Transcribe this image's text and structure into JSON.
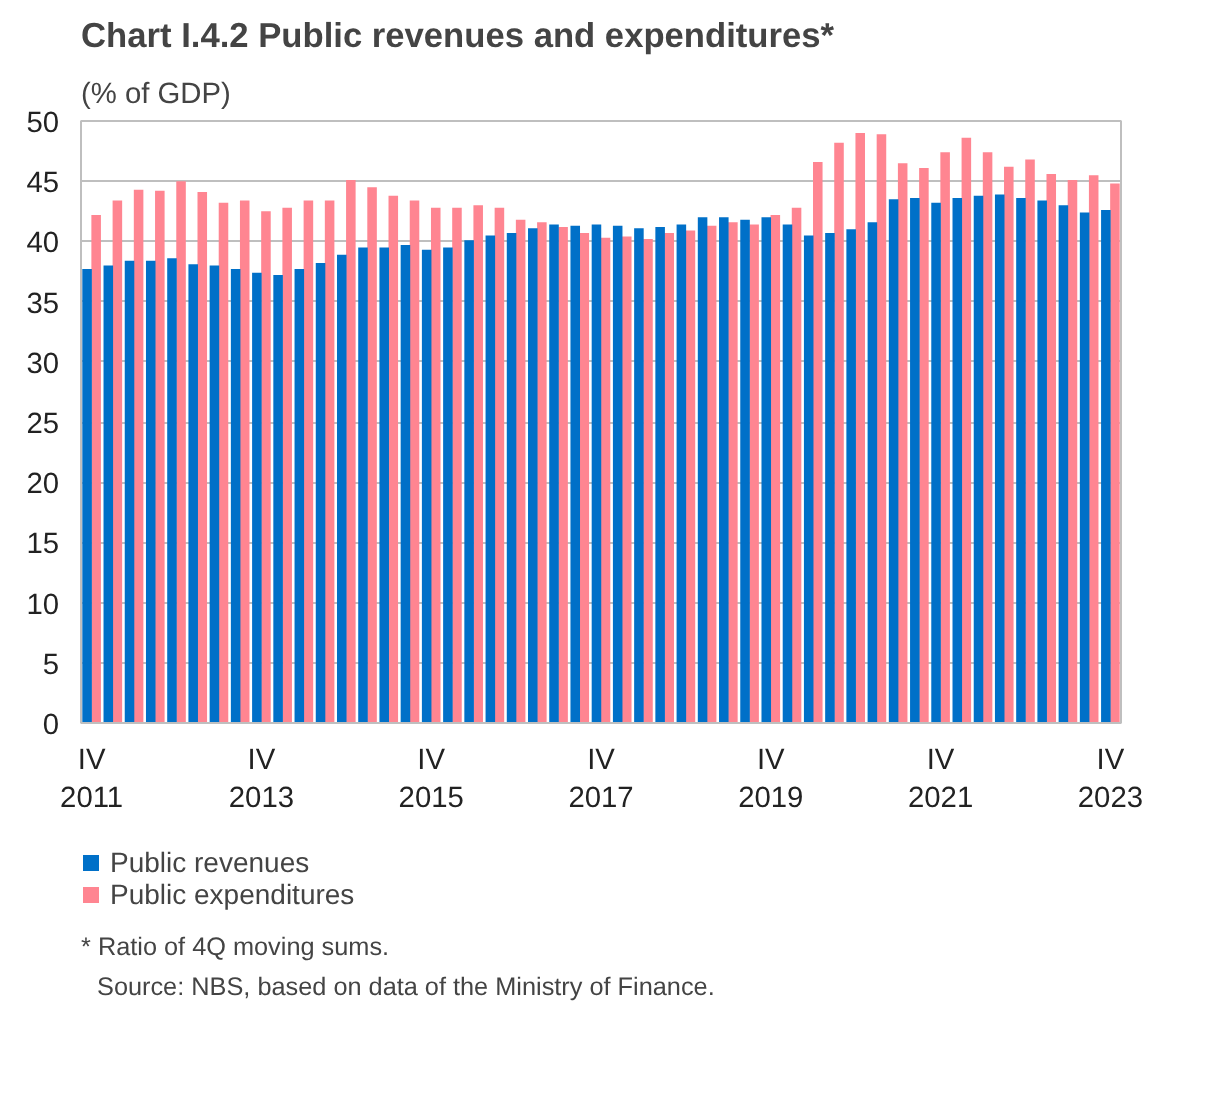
{
  "chart_data": {
    "type": "bar",
    "title": "Chart I.4.2 Public revenues and expenditures*",
    "subtitle": "(% of GDP)",
    "categories": [
      "IV\n2011",
      null,
      null,
      null,
      null,
      null,
      null,
      null,
      "IV\n2013",
      null,
      null,
      null,
      null,
      null,
      null,
      null,
      "IV\n2015",
      null,
      null,
      null,
      null,
      null,
      null,
      null,
      "IV\n2017",
      null,
      null,
      null,
      null,
      null,
      null,
      null,
      "IV\n2019",
      null,
      null,
      null,
      null,
      null,
      null,
      null,
      "IV\n2021",
      null,
      null,
      null,
      null,
      null,
      null,
      null,
      "IV\n2023"
    ],
    "series": [
      {
        "name": "Public revenues",
        "color": "#0070c8",
        "values": [
          37.7,
          38.0,
          38.4,
          38.4,
          38.6,
          38.1,
          38.0,
          37.7,
          37.4,
          37.2,
          37.7,
          38.2,
          38.9,
          39.5,
          39.5,
          39.7,
          39.3,
          39.5,
          40.1,
          40.5,
          40.7,
          41.1,
          41.4,
          41.3,
          41.4,
          41.3,
          41.1,
          41.2,
          41.4,
          42.0,
          42.0,
          41.8,
          42.0,
          41.4,
          40.5,
          40.7,
          41.0,
          41.6,
          43.5,
          43.6,
          43.2,
          43.6,
          43.8,
          43.9,
          43.6,
          43.4,
          43.0,
          42.4,
          42.6
        ]
      },
      {
        "name": "Public expenditures",
        "color": "#ff8591",
        "values": [
          42.2,
          43.4,
          44.3,
          44.2,
          45.0,
          44.1,
          43.2,
          43.4,
          42.5,
          42.8,
          43.4,
          43.4,
          45.1,
          44.5,
          43.8,
          43.4,
          42.8,
          42.8,
          43.0,
          42.8,
          41.8,
          41.6,
          41.2,
          40.7,
          40.3,
          40.4,
          40.2,
          40.7,
          40.9,
          41.3,
          41.6,
          41.4,
          42.2,
          42.8,
          46.6,
          48.2,
          49.0,
          48.9,
          46.5,
          46.1,
          47.4,
          48.6,
          47.4,
          46.2,
          46.8,
          45.6,
          45.1,
          45.5,
          44.8
        ]
      }
    ],
    "ylim": [
      0,
      50
    ],
    "yticks": [
      0,
      5,
      10,
      15,
      20,
      25,
      30,
      35,
      40,
      45,
      50
    ],
    "grid": "y",
    "legend": "bottom",
    "annotations": [
      "* Ratio of 4Q moving sums.",
      "Source: NBS, based on data of the Ministry of Finance."
    ]
  }
}
